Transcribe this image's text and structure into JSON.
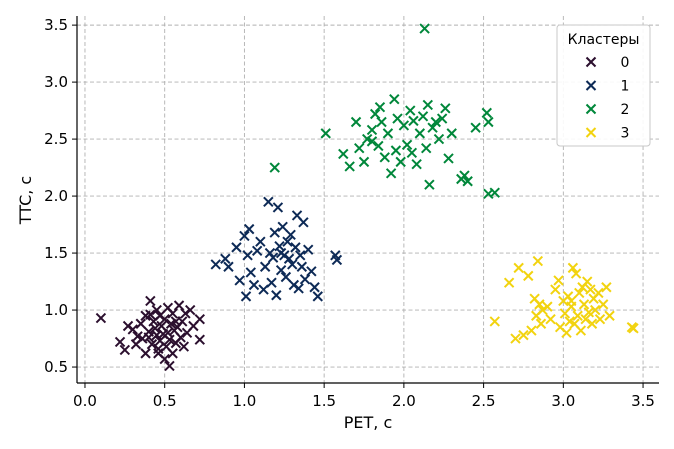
{
  "chart_data": {
    "type": "scatter",
    "xlabel": "PET, с",
    "ylabel": "TTC, с",
    "xlim": [
      -0.05,
      3.6
    ],
    "ylim": [
      0.36,
      3.58
    ],
    "xticks": [
      "0.0",
      "0.5",
      "1.0",
      "1.5",
      "2.0",
      "2.5",
      "3.0",
      "3.5"
    ],
    "yticks": [
      "0.5",
      "1.0",
      "1.5",
      "2.0",
      "2.5",
      "3.0",
      "3.5"
    ],
    "grid": true,
    "marker": "x",
    "legend": {
      "title": "Кластеры",
      "placement": "top-right"
    },
    "series": [
      {
        "name": "0",
        "color": "#2b0f2e",
        "points": [
          [
            0.1,
            0.93
          ],
          [
            0.22,
            0.72
          ],
          [
            0.25,
            0.65
          ],
          [
            0.27,
            0.86
          ],
          [
            0.3,
            0.83
          ],
          [
            0.32,
            0.7
          ],
          [
            0.33,
            0.77
          ],
          [
            0.35,
            0.88
          ],
          [
            0.36,
            0.75
          ],
          [
            0.38,
            0.62
          ],
          [
            0.38,
            0.95
          ],
          [
            0.4,
            0.81
          ],
          [
            0.4,
            0.76
          ],
          [
            0.41,
            1.08
          ],
          [
            0.42,
            0.7
          ],
          [
            0.43,
            0.9
          ],
          [
            0.44,
            0.84
          ],
          [
            0.45,
            0.78
          ],
          [
            0.45,
            1.0
          ],
          [
            0.46,
            0.66
          ],
          [
            0.47,
            0.95
          ],
          [
            0.47,
            0.73
          ],
          [
            0.48,
            0.86
          ],
          [
            0.49,
            0.79
          ],
          [
            0.5,
            0.57
          ],
          [
            0.5,
            0.92
          ],
          [
            0.51,
            0.68
          ],
          [
            0.52,
            0.8
          ],
          [
            0.52,
            1.02
          ],
          [
            0.53,
            0.51
          ],
          [
            0.53,
            0.74
          ],
          [
            0.54,
            0.88
          ],
          [
            0.55,
            0.62
          ],
          [
            0.55,
            0.97
          ],
          [
            0.56,
            0.82
          ],
          [
            0.57,
            0.71
          ],
          [
            0.58,
            0.85
          ],
          [
            0.59,
            1.04
          ],
          [
            0.6,
            0.76
          ],
          [
            0.61,
            0.9
          ],
          [
            0.62,
            0.68
          ],
          [
            0.63,
            0.97
          ],
          [
            0.64,
            0.8
          ],
          [
            0.66,
            1.0
          ],
          [
            0.68,
            0.86
          ],
          [
            0.72,
            0.74
          ],
          [
            0.72,
            0.92
          ],
          [
            0.46,
            0.62
          ],
          [
            0.41,
            0.96
          ],
          [
            0.57,
            0.9
          ]
        ]
      },
      {
        "name": "1",
        "color": "#0d2a56",
        "points": [
          [
            0.82,
            1.4
          ],
          [
            0.88,
            1.45
          ],
          [
            0.9,
            1.38
          ],
          [
            0.95,
            1.55
          ],
          [
            0.97,
            1.26
          ],
          [
            1.0,
            1.65
          ],
          [
            1.01,
            1.12
          ],
          [
            1.02,
            1.48
          ],
          [
            1.03,
            1.71
          ],
          [
            1.04,
            1.33
          ],
          [
            1.06,
            1.22
          ],
          [
            1.08,
            1.52
          ],
          [
            1.1,
            1.6
          ],
          [
            1.12,
            1.18
          ],
          [
            1.13,
            1.38
          ],
          [
            1.15,
            1.95
          ],
          [
            1.16,
            1.5
          ],
          [
            1.17,
            1.24
          ],
          [
            1.18,
            1.46
          ],
          [
            1.19,
            1.68
          ],
          [
            1.2,
            1.13
          ],
          [
            1.21,
            1.9
          ],
          [
            1.22,
            1.56
          ],
          [
            1.23,
            1.35
          ],
          [
            1.24,
            1.73
          ],
          [
            1.25,
            1.48
          ],
          [
            1.26,
            1.29
          ],
          [
            1.27,
            1.6
          ],
          [
            1.28,
            1.45
          ],
          [
            1.29,
            1.66
          ],
          [
            1.3,
            1.4
          ],
          [
            1.31,
            1.22
          ],
          [
            1.32,
            1.55
          ],
          [
            1.33,
            1.83
          ],
          [
            1.34,
            1.19
          ],
          [
            1.35,
            1.48
          ],
          [
            1.36,
            1.38
          ],
          [
            1.37,
            1.77
          ],
          [
            1.38,
            1.27
          ],
          [
            1.4,
            1.53
          ],
          [
            1.42,
            1.34
          ],
          [
            1.44,
            1.2
          ],
          [
            1.46,
            1.12
          ],
          [
            1.57,
            1.48
          ],
          [
            1.58,
            1.44
          ],
          [
            1.23,
            1.5
          ]
        ]
      },
      {
        "name": "2",
        "color": "#00873a",
        "points": [
          [
            1.19,
            2.25
          ],
          [
            1.51,
            2.55
          ],
          [
            1.62,
            2.37
          ],
          [
            1.66,
            2.26
          ],
          [
            1.7,
            2.65
          ],
          [
            1.72,
            2.42
          ],
          [
            1.75,
            2.3
          ],
          [
            1.77,
            2.5
          ],
          [
            1.8,
            2.58
          ],
          [
            1.8,
            2.48
          ],
          [
            1.82,
            2.72
          ],
          [
            1.84,
            2.44
          ],
          [
            1.85,
            2.78
          ],
          [
            1.86,
            2.65
          ],
          [
            1.88,
            2.34
          ],
          [
            1.9,
            2.55
          ],
          [
            1.92,
            2.2
          ],
          [
            1.94,
            2.85
          ],
          [
            1.95,
            2.4
          ],
          [
            1.96,
            2.68
          ],
          [
            1.98,
            2.3
          ],
          [
            2.0,
            2.62
          ],
          [
            2.02,
            2.45
          ],
          [
            2.04,
            2.75
          ],
          [
            2.05,
            2.38
          ],
          [
            2.06,
            2.66
          ],
          [
            2.08,
            2.28
          ],
          [
            2.1,
            2.55
          ],
          [
            2.12,
            2.7
          ],
          [
            2.14,
            2.42
          ],
          [
            2.15,
            2.8
          ],
          [
            2.16,
            2.1
          ],
          [
            2.18,
            2.6
          ],
          [
            2.2,
            2.65
          ],
          [
            2.22,
            2.5
          ],
          [
            2.24,
            2.68
          ],
          [
            2.26,
            2.77
          ],
          [
            2.28,
            2.33
          ],
          [
            2.3,
            2.55
          ],
          [
            2.36,
            2.15
          ],
          [
            2.38,
            2.18
          ],
          [
            2.4,
            2.13
          ],
          [
            2.45,
            2.6
          ],
          [
            2.52,
            2.73
          ],
          [
            2.53,
            2.65
          ],
          [
            2.53,
            2.02
          ],
          [
            2.57,
            2.03
          ],
          [
            2.13,
            3.47
          ]
        ]
      },
      {
        "name": "3",
        "color": "#f2d30f",
        "points": [
          [
            2.57,
            0.9
          ],
          [
            2.66,
            1.24
          ],
          [
            2.7,
            0.75
          ],
          [
            2.72,
            1.37
          ],
          [
            2.75,
            0.78
          ],
          [
            2.78,
            1.3
          ],
          [
            2.8,
            0.82
          ],
          [
            2.82,
            1.1
          ],
          [
            2.83,
            0.95
          ],
          [
            2.84,
            1.43
          ],
          [
            2.85,
            1.05
          ],
          [
            2.86,
            0.88
          ],
          [
            2.87,
            1.0
          ],
          [
            2.9,
            1.03
          ],
          [
            2.92,
            0.92
          ],
          [
            2.95,
            1.18
          ],
          [
            2.97,
            1.26
          ],
          [
            2.98,
            0.85
          ],
          [
            3.0,
            1.08
          ],
          [
            3.01,
            0.97
          ],
          [
            3.02,
            0.8
          ],
          [
            3.03,
            1.12
          ],
          [
            3.04,
            0.9
          ],
          [
            3.05,
            1.03
          ],
          [
            3.06,
            1.37
          ],
          [
            3.07,
            0.88
          ],
          [
            3.08,
            1.32
          ],
          [
            3.09,
            0.95
          ],
          [
            3.1,
            1.15
          ],
          [
            3.11,
            0.82
          ],
          [
            3.12,
            1.2
          ],
          [
            3.13,
            1.05
          ],
          [
            3.14,
            0.92
          ],
          [
            3.15,
            1.25
          ],
          [
            3.16,
            0.98
          ],
          [
            3.17,
            1.18
          ],
          [
            3.18,
            0.88
          ],
          [
            3.19,
            1.1
          ],
          [
            3.2,
            1.0
          ],
          [
            3.22,
            1.15
          ],
          [
            3.23,
            0.92
          ],
          [
            3.25,
            1.05
          ],
          [
            3.27,
            1.2
          ],
          [
            3.29,
            0.95
          ],
          [
            3.05,
            1.08
          ],
          [
            3.43,
            0.85
          ],
          [
            3.44,
            0.84
          ]
        ]
      }
    ]
  }
}
